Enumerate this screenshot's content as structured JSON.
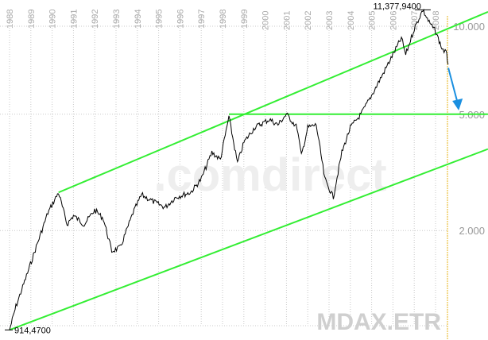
{
  "chart_data": {
    "type": "line",
    "title": "MDAX.ETR",
    "watermark": ".comdirect",
    "yscale": "log",
    "ylim": [
      880,
      12500
    ],
    "xlim": [
      1987.6,
      2010.46
    ],
    "x_ticks": [
      "1988",
      "1989",
      "1990",
      "1991",
      "1992",
      "1993",
      "1994",
      "1995",
      "1996",
      "1997",
      "1998",
      "1999",
      "2000",
      "2001",
      "2002",
      "2003",
      "2004",
      "2005",
      "2006",
      "2007",
      "2008"
    ],
    "y_ticks": [
      {
        "value": 10000,
        "label": "10.000"
      },
      {
        "value": 5000,
        "label": "5.000"
      },
      {
        "value": 2000,
        "label": "2.000"
      }
    ],
    "annotations": {
      "high": {
        "x": 2007.4,
        "value": 11377.94,
        "label": "11,377,9400"
      },
      "low": {
        "x": 1988.0,
        "value": 914.47,
        "label": "914,4700"
      }
    },
    "series": [
      {
        "name": "MDAX",
        "color": "#000000",
        "points": [
          [
            1988.0,
            914
          ],
          [
            1988.3,
            1100
          ],
          [
            1988.8,
            1400
          ],
          [
            1989.3,
            1800
          ],
          [
            1989.8,
            2300
          ],
          [
            1990.3,
            2700
          ],
          [
            1990.7,
            2100
          ],
          [
            1991.0,
            2250
          ],
          [
            1991.5,
            2100
          ],
          [
            1992.0,
            2350
          ],
          [
            1992.4,
            2200
          ],
          [
            1992.8,
            1700
          ],
          [
            1993.2,
            1750
          ],
          [
            1993.8,
            2300
          ],
          [
            1994.2,
            2650
          ],
          [
            1994.8,
            2500
          ],
          [
            1995.3,
            2400
          ],
          [
            1995.8,
            2600
          ],
          [
            1996.5,
            2700
          ],
          [
            1997.0,
            3000
          ],
          [
            1997.5,
            3700
          ],
          [
            1997.9,
            3500
          ],
          [
            1998.3,
            4900
          ],
          [
            1998.7,
            3400
          ],
          [
            1999.0,
            4000
          ],
          [
            1999.5,
            4500
          ],
          [
            2000.2,
            4800
          ],
          [
            2000.6,
            4600
          ],
          [
            2001.0,
            5000
          ],
          [
            2001.5,
            4500
          ],
          [
            2001.7,
            3600
          ],
          [
            2002.0,
            4500
          ],
          [
            2002.4,
            4600
          ],
          [
            2002.8,
            3000
          ],
          [
            2003.2,
            2600
          ],
          [
            2003.6,
            3700
          ],
          [
            2004.0,
            4500
          ],
          [
            2004.5,
            5000
          ],
          [
            2005.0,
            5800
          ],
          [
            2005.5,
            6800
          ],
          [
            2006.0,
            8000
          ],
          [
            2006.4,
            9100
          ],
          [
            2006.6,
            8000
          ],
          [
            2007.0,
            9800
          ],
          [
            2007.4,
            11378
          ],
          [
            2007.7,
            10300
          ],
          [
            2008.0,
            9600
          ],
          [
            2008.3,
            8400
          ],
          [
            2008.5,
            8100
          ],
          [
            2008.6,
            7400
          ]
        ]
      }
    ],
    "trend_lines": [
      {
        "name": "upper-channel",
        "color": "#33ee33",
        "from": [
          1990.3,
          2700
        ],
        "to": [
          2010.46,
          11200
        ]
      },
      {
        "name": "lower-channel",
        "color": "#33ee33",
        "from": [
          1988.0,
          914
        ],
        "to": [
          2010.46,
          3800
        ]
      },
      {
        "name": "support-5000",
        "color": "#33ee33",
        "from": [
          1998.3,
          5000
        ],
        "to": [
          2010.46,
          5000
        ]
      }
    ],
    "forecast_arrow": {
      "color": "#1a8fe0",
      "from": [
        2008.6,
        7200
      ],
      "to": [
        2009.05,
        5150
      ]
    }
  }
}
